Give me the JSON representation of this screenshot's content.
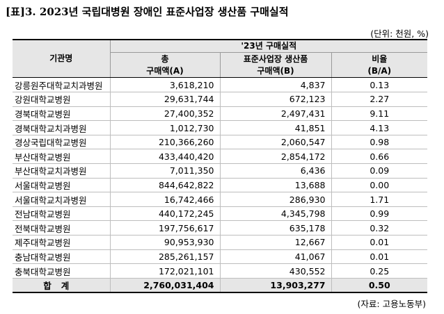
{
  "title": "[표]3. 2023년 국립대병원 장애인 표준사업장 생산품 구매실적",
  "unit": "(단위: 천원, %)",
  "source": "(자료: 고용노동부)",
  "table": {
    "org_header": "기관명",
    "group_header": "'23년 구매실적",
    "col_total_line1": "총",
    "col_total_line2": "구매액(A)",
    "col_std_line1": "표준사업장 생산품",
    "col_std_line2": "구매액(B)",
    "col_ratio_line1": "비율",
    "col_ratio_line2": "(B/A)",
    "rows": [
      {
        "org": "강릉원주대학교치과병원",
        "total": "3,618,210",
        "std": "4,837",
        "ratio": "0.13"
      },
      {
        "org": "강원대학교병원",
        "total": "29,631,744",
        "std": "672,123",
        "ratio": "2.27"
      },
      {
        "org": "경북대학교병원",
        "total": "27,400,352",
        "std": "2,497,431",
        "ratio": "9.11"
      },
      {
        "org": "경북대학교치과병원",
        "total": "1,012,730",
        "std": "41,851",
        "ratio": "4.13"
      },
      {
        "org": "경상국립대학교병원",
        "total": "210,366,260",
        "std": "2,060,547",
        "ratio": "0.98"
      },
      {
        "org": "부산대학교병원",
        "total": "433,440,420",
        "std": "2,854,172",
        "ratio": "0.66"
      },
      {
        "org": "부산대학교치과병원",
        "total": "7,011,350",
        "std": "6,436",
        "ratio": "0.09"
      },
      {
        "org": "서울대학교병원",
        "total": "844,642,822",
        "std": "13,688",
        "ratio": "0.00"
      },
      {
        "org": "서울대학교치과병원",
        "total": "16,742,466",
        "std": "286,930",
        "ratio": "1.71"
      },
      {
        "org": "전남대학교병원",
        "total": "440,172,245",
        "std": "4,345,798",
        "ratio": "0.99"
      },
      {
        "org": "전북대학교병원",
        "total": "197,756,617",
        "std": "635,178",
        "ratio": "0.32"
      },
      {
        "org": "제주대학교병원",
        "total": "90,953,930",
        "std": "12,667",
        "ratio": "0.01"
      },
      {
        "org": "충남대학교병원",
        "total": "285,261,157",
        "std": "41,067",
        "ratio": "0.01"
      },
      {
        "org": "충북대학교병원",
        "total": "172,021,101",
        "std": "430,552",
        "ratio": "0.25"
      }
    ],
    "total_row": {
      "org": "합계",
      "total": "2,760,031,404",
      "std": "13,903,277",
      "ratio": "0.50"
    }
  }
}
